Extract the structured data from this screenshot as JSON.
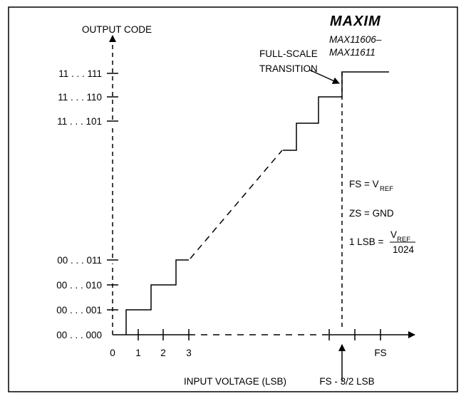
{
  "logo": {
    "text": "MAXIM"
  },
  "part_numbers": {
    "line1": "MAX11606–",
    "line2": "MAX11611"
  },
  "y_axis": {
    "label": "OUTPUT CODE"
  },
  "x_axis": {
    "label": "INPUT VOLTAGE (LSB)",
    "ticks": [
      "0",
      "1",
      "2",
      "3",
      "FS"
    ],
    "marker_label": "FS - 3/2 LSB"
  },
  "codes": [
    "11 . . . 111",
    "11 . . . 110",
    "11 . . . 101",
    "00 . . . 011",
    "00 . . . 010",
    "00 . . . 001",
    "00 . . . 000"
  ],
  "annotation": {
    "line1": "FULL-SCALE",
    "line2": "TRANSITION"
  },
  "equations": {
    "fs_lhs": "FS = V",
    "fs_sub": "REF",
    "zs": "ZS = GND",
    "lsb_lhs": "1 LSB =",
    "lsb_num": "V",
    "lsb_num_sub": "REF",
    "lsb_den": "1024"
  }
}
